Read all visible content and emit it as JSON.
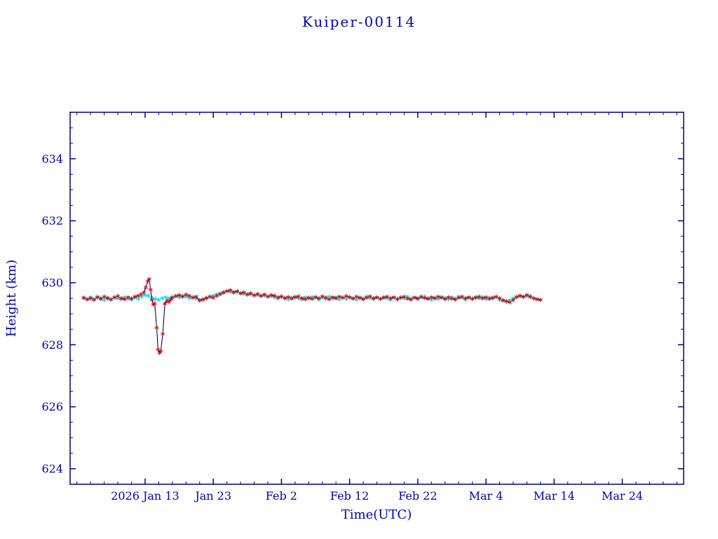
{
  "chart_data": {
    "type": "scatter",
    "title": "Kuiper-00114",
    "xlabel": "Time(UTC)",
    "ylabel": "Height (km)",
    "x_unit": "day of year 2026",
    "xlim": [
      2,
      92
    ],
    "ylim": [
      623.5,
      635.5
    ],
    "grid": false,
    "colors": {
      "text": "#0000b4",
      "frame": "#000080",
      "observed": "#cc1111",
      "observed_line": "#000080",
      "predicted": "#00dce8"
    },
    "x_ticks": [
      {
        "value": 13,
        "label": "2026 Jan 13"
      },
      {
        "value": 23,
        "label": "Jan 23"
      },
      {
        "value": 33,
        "label": "Feb 2"
      },
      {
        "value": 43,
        "label": "Feb 12"
      },
      {
        "value": 53,
        "label": "Feb 22"
      },
      {
        "value": 63,
        "label": "Mar 4"
      },
      {
        "value": 73,
        "label": "Mar 14"
      },
      {
        "value": 83,
        "label": "Mar 24"
      }
    ],
    "x_minor_start": 3,
    "x_minor_step": 2,
    "y_ticks": [
      {
        "value": 624,
        "label": "624"
      },
      {
        "value": 626,
        "label": "626"
      },
      {
        "value": 628,
        "label": "628"
      },
      {
        "value": 630,
        "label": "630"
      },
      {
        "value": 632,
        "label": "632"
      },
      {
        "value": 634,
        "label": "634"
      }
    ],
    "y_minor_step": 0.5,
    "series": [
      {
        "name": "predicted-height",
        "marker": "asterisk",
        "color": "#00dce8",
        "parts": [
          {
            "x_start": 4,
            "x_step": 0.5,
            "values": [
              629.5,
              629.46,
              629.53,
              629.48,
              629.55,
              629.51,
              629.45,
              629.52,
              629.47,
              629.54,
              629.5,
              629.47,
              629.53,
              629.49,
              629.46,
              629.52,
              629.48,
              629.55,
              629.6,
              629.58,
              629.52,
              629.48,
              629.45,
              629.5,
              629.53,
              629.5,
              629.54,
              629.57,
              629.53,
              629.58,
              629.55,
              629.51,
              629.54,
              629.49,
              629.45,
              629.47,
              629.52,
              629.55,
              629.58,
              629.62,
              629.66,
              629.7,
              629.73,
              629.71,
              629.68,
              629.7,
              629.66,
              629.64,
              629.61,
              629.63,
              629.59,
              629.61,
              629.57,
              629.59,
              629.55,
              629.57,
              629.53,
              629.49,
              629.54,
              629.5,
              629.46,
              629.52,
              629.55,
              629.5,
              629.47,
              629.53,
              629.49,
              629.54,
              629.51,
              629.46,
              629.52,
              629.48,
              629.55,
              629.5,
              629.53,
              629.47,
              629.52,
              629.48,
              629.54,
              629.5,
              629.46,
              629.53,
              629.49,
              629.55,
              629.51,
              629.47,
              629.52,
              629.48,
              629.54,
              629.5,
              629.45,
              629.52,
              629.48,
              629.53,
              629.5,
              629.55,
              629.49,
              629.53,
              629.47,
              629.52,
              629.55,
              629.5,
              629.46,
              629.52,
              629.48,
              629.54,
              629.5,
              629.47,
              629.53,
              629.49,
              629.55,
              629.51,
              629.46,
              629.52,
              629.49,
              629.54,
              629.5,
              629.53,
              629.48,
              629.52,
              629.49,
              629.54,
              629.45,
              629.42,
              629.4,
              629.44,
              629.5,
              629.55,
              629.57,
              629.54,
              629.58,
              629.53,
              629.5,
              629.47,
              629.45
            ]
          }
        ]
      },
      {
        "name": "observed-height",
        "marker": "asterisk",
        "color": "#cc1111",
        "line_color": "#000080",
        "parts": [
          {
            "x_start": 4,
            "x_step": 0.5,
            "values": [
              629.52,
              629.47,
              629.5,
              629.45,
              629.53,
              629.48,
              629.55,
              629.5,
              629.46,
              629.52,
              629.57,
              629.5,
              629.47,
              629.53,
              629.49,
              629.55,
              629.58
            ]
          },
          {
            "points": [
              [
                12.4,
                629.63
              ],
              [
                12.8,
                629.68
              ],
              [
                13.1,
                629.85
              ],
              [
                13.4,
                630.05
              ],
              [
                13.6,
                630.12
              ],
              [
                13.8,
                629.78
              ],
              [
                14.0,
                629.45
              ],
              [
                14.2,
                629.3
              ],
              [
                14.4,
                629.33
              ],
              [
                14.7,
                628.55
              ],
              [
                14.9,
                627.85
              ],
              [
                15.1,
                627.74
              ],
              [
                15.3,
                627.8
              ],
              [
                15.6,
                628.35
              ],
              [
                15.9,
                629.32
              ],
              [
                16.2,
                629.42
              ],
              [
                16.5,
                629.38
              ],
              [
                16.8,
                629.47
              ]
            ]
          },
          {
            "x_start": 17,
            "x_step": 0.5,
            "values": [
              629.52,
              629.57,
              629.6,
              629.55,
              629.62,
              629.58,
              629.52,
              629.55,
              629.43,
              629.46,
              629.5,
              629.55,
              629.52,
              629.58,
              629.63,
              629.68,
              629.73,
              629.76,
              629.7,
              629.73,
              629.66,
              629.69,
              629.63,
              629.66,
              629.6,
              629.64,
              629.58,
              629.62,
              629.56,
              629.6,
              629.58,
              629.53,
              629.56,
              629.51,
              629.54,
              629.49,
              629.53,
              629.56,
              629.5,
              629.47,
              629.52,
              629.48,
              629.54,
              629.5,
              629.56,
              629.52,
              629.47,
              629.53,
              629.5,
              629.55,
              629.52,
              629.57,
              629.53,
              629.49,
              629.55,
              629.51,
              629.47,
              629.52,
              629.56,
              629.5,
              629.53,
              629.48,
              629.52,
              629.55,
              629.5,
              629.53,
              629.47,
              629.52,
              629.55,
              629.49,
              629.46,
              629.52,
              629.5,
              629.55,
              629.51,
              629.48,
              629.53,
              629.5,
              629.55,
              629.52,
              629.48,
              629.53,
              629.49,
              629.46,
              629.52,
              629.55,
              629.5,
              629.53,
              629.48,
              629.52,
              629.55,
              629.5,
              629.53,
              629.48,
              629.52,
              629.55,
              629.5,
              629.44,
              629.4,
              629.37,
              629.44,
              629.54,
              629.58,
              629.55,
              629.6,
              629.56,
              629.5,
              629.47,
              629.45
            ]
          }
        ]
      }
    ]
  }
}
